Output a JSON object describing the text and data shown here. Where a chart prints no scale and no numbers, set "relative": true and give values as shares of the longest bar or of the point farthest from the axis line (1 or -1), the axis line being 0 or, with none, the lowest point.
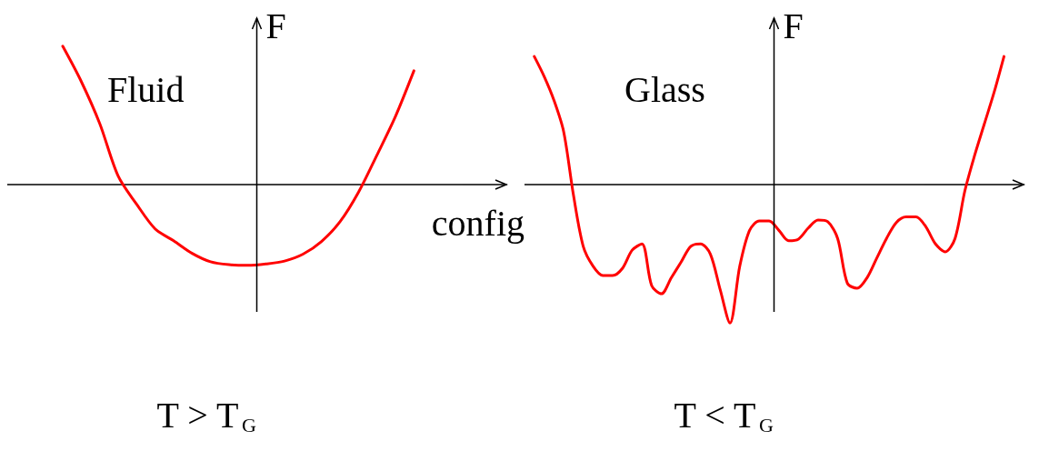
{
  "chart_data": [
    {
      "type": "line",
      "relative": true,
      "ylabel": "F",
      "xlabel": "config",
      "annotations": [
        "Fluid"
      ],
      "subtitle": "T > T$_{G}$",
      "color": "#ff0000",
      "marker": "none",
      "line_style": "solid",
      "tick_labels": false,
      "categories": [
        null,
        null,
        null,
        null,
        null,
        null,
        null,
        null,
        null,
        null,
        null,
        null,
        null,
        null,
        null,
        null,
        null,
        null,
        null,
        null,
        null,
        null,
        null,
        null,
        null,
        null,
        null,
        null
      ],
      "values": [
        null,
        null,
        null,
        1,
        0.746,
        0.442,
        0.061,
        -0.142,
        -0.32,
        -0.406,
        -0.497,
        -0.558,
        -0.579,
        -0.584,
        -0.574,
        -0.553,
        -0.503,
        -0.411,
        -0.269,
        -0.056,
        0.213,
        0.492,
        0.822,
        null,
        null,
        null,
        null,
        null
      ]
    },
    {
      "type": "line",
      "relative": true,
      "ylabel": "F",
      "annotations": [
        "Glass"
      ],
      "subtitle": "T < T$_{G}$",
      "color": "#ff0000",
      "marker": "none",
      "line_style": "solid",
      "tick_labels": false,
      "categories": [
        null,
        null,
        null,
        null,
        null,
        null,
        null,
        null,
        null,
        null,
        null,
        null,
        null,
        null,
        null,
        null,
        null,
        null,
        null,
        null,
        null,
        null,
        null,
        null,
        null,
        null,
        null,
        null,
        null,
        null,
        null,
        null,
        null,
        null,
        null,
        null,
        null,
        null,
        null,
        null,
        null,
        null,
        null,
        null,
        null,
        null,
        null,
        null,
        null,
        null,
        null,
        null
      ],
      "values": [
        null,
        0.926,
        0.783,
        0.611,
        0.383,
        -0.074,
        -0.446,
        -0.589,
        -0.657,
        -0.657,
        -0.606,
        -0.474,
        -0.429,
        -0.731,
        -0.789,
        -0.674,
        -0.56,
        -0.446,
        -0.429,
        -0.503,
        -0.76,
        -1,
        -0.589,
        -0.331,
        -0.263,
        -0.263,
        -0.331,
        -0.406,
        -0.394,
        -0.314,
        -0.257,
        -0.269,
        -0.389,
        -0.714,
        -0.749,
        -0.674,
        -0.531,
        -0.389,
        -0.274,
        -0.234,
        -0.234,
        -0.303,
        -0.429,
        -0.486,
        -0.389,
        -0.046,
        0.211,
        0.44,
        0.669,
        0.926,
        null,
        null
      ]
    }
  ]
}
